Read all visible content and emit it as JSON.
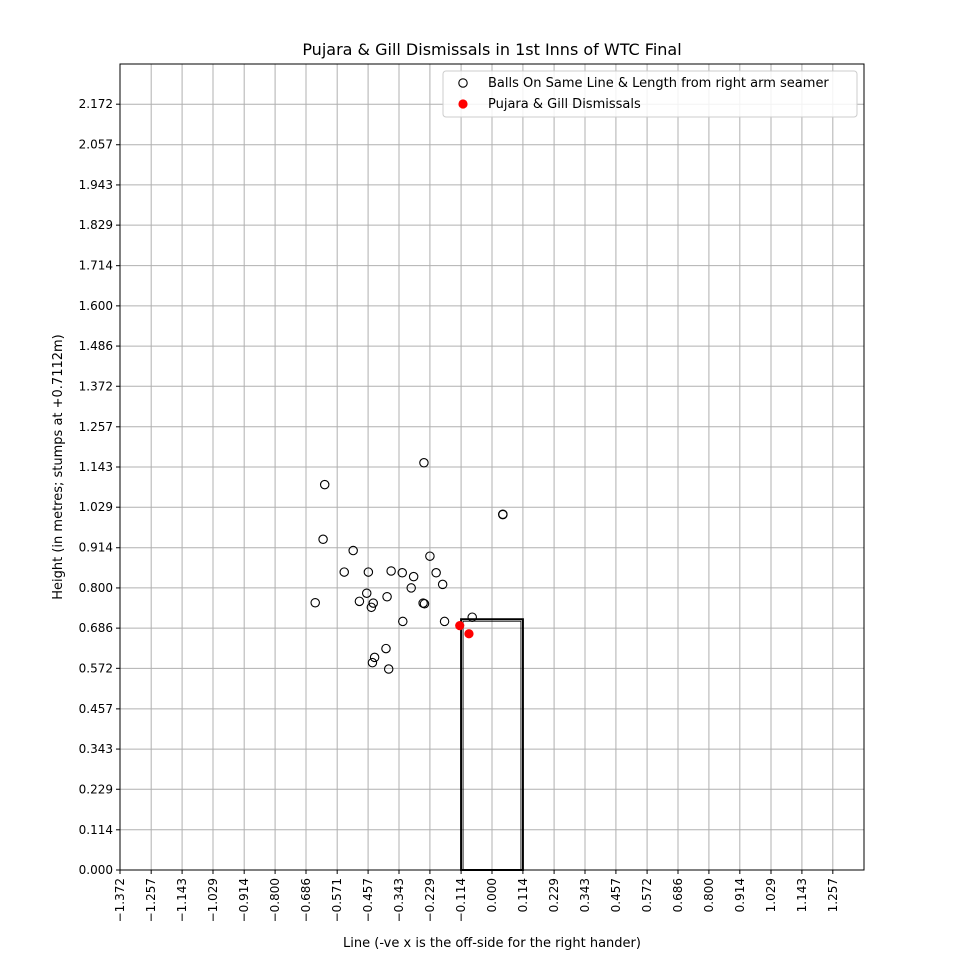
{
  "chart_data": {
    "type": "scatter",
    "title": "Pujara & Gill Dismissals in 1st Inns of WTC Final",
    "xlabel": "Line (-ve x is the off-side for the right hander)",
    "ylabel": "Height (in metres; stumps at +0.7112m)",
    "xlim": [
      -1.372,
      1.372
    ],
    "ylim": [
      0.0,
      2.286
    ],
    "x_ticks": [
      -1.372,
      -1.257,
      -1.143,
      -1.029,
      -0.914,
      -0.8,
      -0.686,
      -0.571,
      -0.457,
      -0.343,
      -0.229,
      -0.114,
      0.0,
      0.114,
      0.229,
      0.343,
      0.457,
      0.572,
      0.686,
      0.8,
      0.914,
      1.029,
      1.143,
      1.257
    ],
    "x_tick_labels": [
      "−1.372",
      "−1.257",
      "−1.143",
      "−1.029",
      "−0.914",
      "−0.800",
      "−0.686",
      "−0.571",
      "−0.457",
      "−0.343",
      "−0.229",
      "−0.114",
      "0.000",
      "0.114",
      "0.229",
      "0.343",
      "0.457",
      "0.572",
      "0.686",
      "0.800",
      "0.914",
      "1.029",
      "1.143",
      "1.257"
    ],
    "y_ticks": [
      0.0,
      0.114,
      0.229,
      0.343,
      0.457,
      0.572,
      0.686,
      0.8,
      0.914,
      1.029,
      1.143,
      1.257,
      1.372,
      1.486,
      1.6,
      1.714,
      1.829,
      1.943,
      2.057,
      2.172
    ],
    "y_tick_labels": [
      "0.000",
      "0.114",
      "0.229",
      "0.343",
      "0.457",
      "0.572",
      "0.686",
      "0.800",
      "0.914",
      "1.029",
      "1.143",
      "1.257",
      "1.372",
      "1.486",
      "1.600",
      "1.714",
      "1.829",
      "1.943",
      "2.057",
      "2.172"
    ],
    "grid": true,
    "legend": "top-right",
    "stumps": {
      "x": [
        -0.114,
        0.114
      ],
      "y": [
        0.0,
        0.7112
      ],
      "color": "#000000"
    },
    "series": [
      {
        "name": "Balls On Same Line & Length from right arm seamer",
        "marker": "hollow-circle",
        "color": "#000000",
        "points": [
          [
            -0.251,
            1.155
          ],
          [
            -0.617,
            1.093
          ],
          [
            0.04,
            1.008
          ],
          [
            0.04,
            1.009
          ],
          [
            -0.623,
            0.938
          ],
          [
            -0.512,
            0.906
          ],
          [
            -0.229,
            0.89
          ],
          [
            -0.545,
            0.845
          ],
          [
            -0.456,
            0.845
          ],
          [
            -0.372,
            0.848
          ],
          [
            -0.331,
            0.843
          ],
          [
            -0.289,
            0.832
          ],
          [
            -0.206,
            0.843
          ],
          [
            -0.182,
            0.81
          ],
          [
            -0.298,
            0.8
          ],
          [
            -0.462,
            0.785
          ],
          [
            -0.387,
            0.775
          ],
          [
            -0.489,
            0.762
          ],
          [
            -0.438,
            0.757
          ],
          [
            -0.445,
            0.745
          ],
          [
            -0.652,
            0.758
          ],
          [
            -0.254,
            0.757
          ],
          [
            -0.249,
            0.755
          ],
          [
            -0.329,
            0.705
          ],
          [
            -0.175,
            0.705
          ],
          [
            -0.073,
            0.717
          ],
          [
            -0.391,
            0.628
          ],
          [
            -0.433,
            0.603
          ],
          [
            -0.441,
            0.588
          ],
          [
            -0.381,
            0.57
          ]
        ]
      },
      {
        "name": "Pujara & Gill Dismissals",
        "marker": "filled-circle",
        "color": "#ff0000",
        "points": [
          [
            -0.119,
            0.693
          ],
          [
            -0.085,
            0.67
          ]
        ]
      }
    ]
  }
}
